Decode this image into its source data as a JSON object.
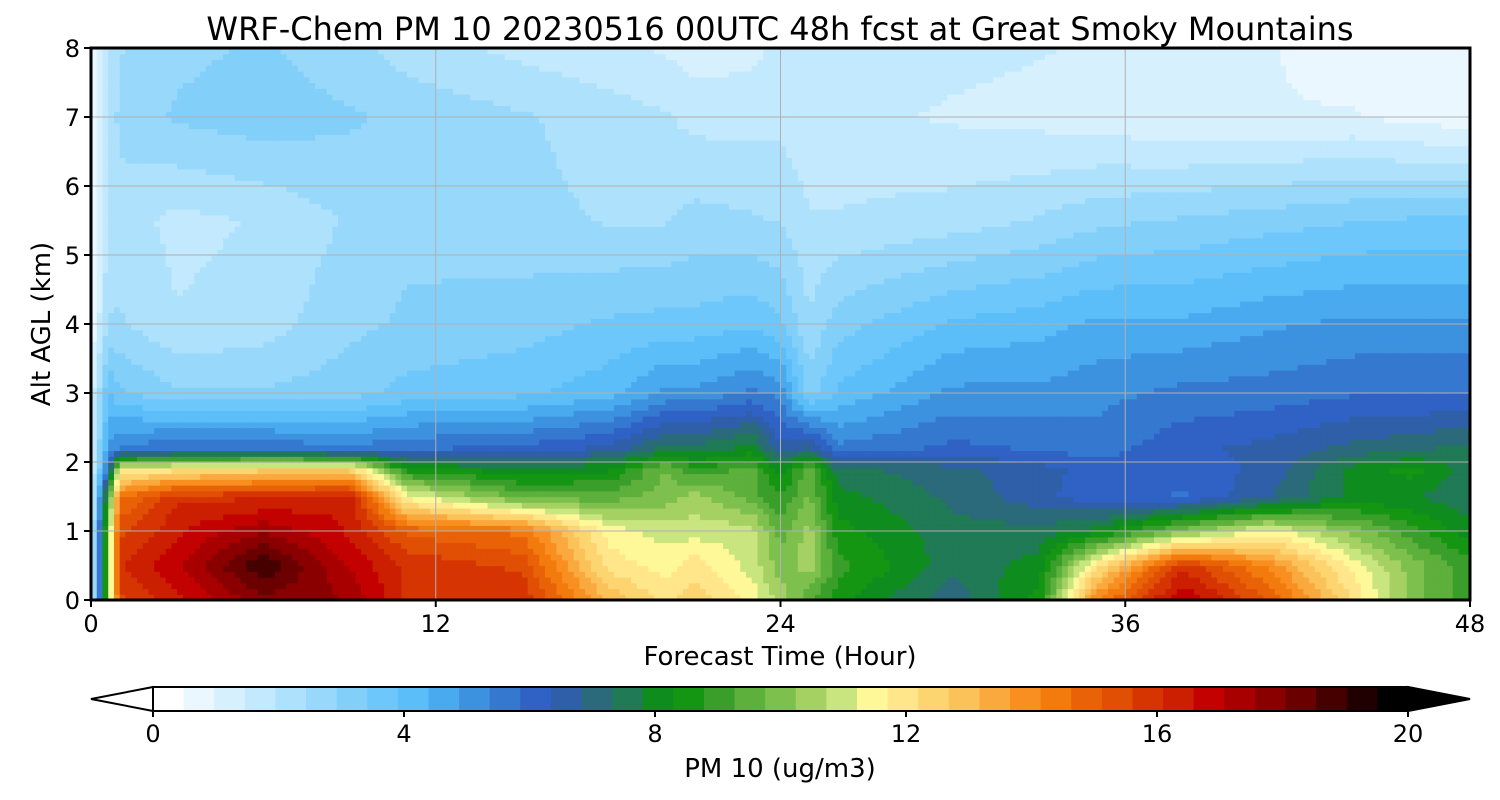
{
  "chart_data": {
    "type": "heatmap",
    "title": "WRF-Chem PM 10  20230516 00UTC 48h fcst at Great Smoky Mountains",
    "xlabel": "Forecast Time (Hour)",
    "ylabel": "Alt AGL (km)",
    "xlim": [
      0,
      48
    ],
    "ylim": [
      0,
      8
    ],
    "x_ticks": [
      "0",
      "12",
      "24",
      "36",
      "48"
    ],
    "y_ticks": [
      "0",
      "1",
      "2",
      "3",
      "4",
      "5",
      "6",
      "7",
      "8"
    ],
    "grid": true,
    "colorbar": {
      "label": "PM 10  (ug/m3)",
      "range": [
        0,
        20
      ],
      "ticks": [
        "0",
        "4",
        "8",
        "12",
        "16",
        "20"
      ],
      "extend": "both",
      "colors": [
        "#ffffff",
        "#eaf7fe",
        "#d6f0fd",
        "#c2e9fd",
        "#aee1fc",
        "#98d8fb",
        "#82cffa",
        "#6ec7fa",
        "#5bbef8",
        "#4aaaf0",
        "#3d92e0",
        "#3478d0",
        "#2f62c4",
        "#2e5fa8",
        "#2a6a7a",
        "#1f7a55",
        "#0e8c1e",
        "#149612",
        "#3a9f2a",
        "#5cb03b",
        "#7ec04d",
        "#a4d162",
        "#c9e57f",
        "#fff898",
        "#ffe68a",
        "#fcd470",
        "#fbc25a",
        "#faa93e",
        "#f88f20",
        "#f37a0c",
        "#ea6207",
        "#e04f04",
        "#d63502",
        "#cc1e00",
        "#c30200",
        "#a80000",
        "#8a0000",
        "#6a0000",
        "#460000",
        "#200000",
        "#000000"
      ]
    },
    "samples": {
      "x_hours": [
        0,
        0.6,
        1,
        3,
        6,
        9,
        11,
        15,
        18,
        20,
        21,
        23,
        24,
        25,
        26,
        30,
        33,
        35,
        38,
        41,
        44,
        46,
        48
      ],
      "rows": [
        {
          "alt_km": 0.05,
          "values": [
            1,
            10,
            15.5,
            16.5,
            18,
            17.5,
            16,
            16,
            13,
            12,
            12.5,
            11.5,
            10.5,
            9.5,
            8.5,
            7,
            8.5,
            14,
            17,
            15,
            12,
            10,
            9
          ]
        },
        {
          "alt_km": 0.5,
          "values": [
            1,
            10,
            16,
            17,
            19,
            17,
            16,
            15.5,
            12,
            11.5,
            12,
            11,
            10,
            10.5,
            9,
            7.5,
            8,
            12,
            16,
            14,
            11.5,
            10,
            9
          ]
        },
        {
          "alt_km": 1.0,
          "values": [
            1,
            10,
            15.5,
            16.5,
            17.5,
            16.5,
            15,
            14.5,
            11.5,
            11,
            11,
            11,
            9.5,
            10.5,
            8.5,
            7.5,
            7.5,
            8,
            10,
            11.5,
            10,
            9,
            8
          ]
        },
        {
          "alt_km": 1.5,
          "values": [
            1,
            9,
            14.5,
            16,
            16,
            16.5,
            11.5,
            9.5,
            9.5,
            10,
            10.5,
            9.5,
            8.8,
            9.8,
            8,
            7.2,
            6.5,
            6,
            5.8,
            6.8,
            8,
            7.8,
            7.5
          ]
        },
        {
          "alt_km": 1.9,
          "values": [
            1,
            6,
            11.5,
            12,
            12.5,
            12.5,
            8.5,
            8,
            8.2,
            9.8,
            8.8,
            9.5,
            8,
            9.6,
            7.5,
            7,
            6.5,
            6.2,
            6,
            6.5,
            8,
            8.5,
            7.5
          ]
        },
        {
          "alt_km": 2.2,
          "values": [
            1,
            5,
            5.5,
            5.8,
            5.8,
            5.5,
            5.8,
            6,
            6.5,
            7.5,
            7.5,
            8,
            6.5,
            7,
            5.5,
            6,
            5.8,
            5.6,
            6.2,
            6.5,
            7,
            7.2,
            7.5
          ]
        },
        {
          "alt_km": 3.0,
          "values": [
            1,
            4,
            3.5,
            3,
            3,
            3.2,
            3.6,
            3.8,
            4.2,
            5,
            5,
            5.5,
            5.2,
            3.2,
            4,
            5,
            5,
            5.2,
            5.5,
            5.6,
            5.8,
            5.8,
            5.8
          ]
        },
        {
          "alt_km": 4.0,
          "values": [
            0.5,
            2.5,
            2.5,
            2,
            2.2,
            2.8,
            3,
            3.2,
            3.5,
            3.6,
            3.6,
            3.8,
            3.5,
            2.5,
            3.2,
            4,
            4.2,
            4.5,
            4.5,
            4.8,
            5,
            5,
            5
          ]
        },
        {
          "alt_km": 5.5,
          "values": [
            0.3,
            2,
            2.2,
            1.8,
            2,
            2.5,
            2.8,
            2.6,
            2.4,
            2.4,
            2.6,
            2.5,
            2.4,
            2,
            2,
            2.2,
            2.5,
            2.8,
            3,
            3.2,
            3.4,
            3.5,
            3.5
          ]
        },
        {
          "alt_km": 7.0,
          "values": [
            0.2,
            2,
            2.6,
            3,
            3.2,
            3,
            2.8,
            2.5,
            2.2,
            2,
            1.8,
            1.8,
            1.8,
            1.6,
            1.6,
            1.4,
            1.3,
            1.2,
            1,
            1,
            1,
            0.8,
            0.7
          ]
        },
        {
          "alt_km": 8.0,
          "values": [
            0.2,
            2,
            2.4,
            2.8,
            3,
            2.6,
            2.2,
            1.8,
            1.6,
            1.4,
            1.2,
            1.3,
            1.6,
            1.6,
            1.7,
            1.6,
            1.5,
            1.4,
            1.2,
            1,
            0.8,
            0.6,
            0.5
          ]
        }
      ]
    }
  }
}
